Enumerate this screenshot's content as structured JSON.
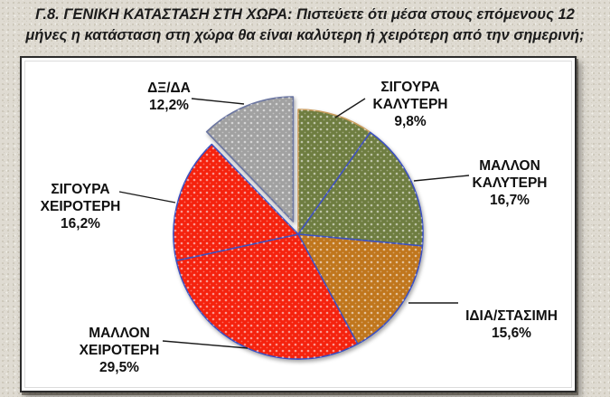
{
  "page": {
    "background_color": "#dfdbd2",
    "title": "Γ.8. ΓΕΝΙΚΗ ΚΑΤΑΣΤΑΣΗ ΣΤΗ ΧΩΡΑ: Πιστεύετε ότι μέσα στους επόμενους 12 μήνες η κατάσταση στη χώρα θα είναι καλύτερη ή χειρότερη από την σημερινή;"
  },
  "chart_data": {
    "type": "pie",
    "title": "Γ.8. ΓΕΝΙΚΗ ΚΑΤΑΣΤΑΣΗ ΣΤΗ ΧΩΡΑ: Πιστεύετε ότι μέσα στους επόμενους 12 μήνες η κατάσταση στη χώρα θα είναι καλύτερη ή χειρότερη από την σημερινή;",
    "direction": "clockwise",
    "start_angle_deg": 0,
    "labels_outside": true,
    "value_unit": "%",
    "value_format": "comma_decimal",
    "slices": [
      {
        "label": "ΣΙΓΟΥΡΑ ΚΑΛΥΤΕΡΗ",
        "value": 9.8,
        "pct_label": "9,8%",
        "color": "#6e7d3f",
        "border_color": "#c89a5a",
        "exploded": false
      },
      {
        "label": "ΜΑΛΛΟΝ ΚΑΛΥΤΕΡΗ",
        "value": 16.7,
        "pct_label": "16,7%",
        "color": "#6e7d3f",
        "border_color": "#3a50c0",
        "exploded": false
      },
      {
        "label": "ΙΔΙΑ/ΣΤΑΣΙΜΗ",
        "value": 15.6,
        "pct_label": "15,6%",
        "color": "#c0761e",
        "border_color": "#3a50c0",
        "exploded": false
      },
      {
        "label": "ΜΑΛΛΟΝ ΧΕΙΡΟΤΕΡΗ",
        "value": 29.5,
        "pct_label": "29,5%",
        "color": "#f5200e",
        "border_color": "#3a50c0",
        "exploded": false
      },
      {
        "label": "ΣΙΓΟΥΡΑ ΧΕΙΡΟΤΕΡΗ",
        "value": 16.2,
        "pct_label": "16,2%",
        "color": "#f5200e",
        "border_color": "#3a50c0",
        "exploded": false
      },
      {
        "label": "ΔΞ/ΔΑ",
        "value": 12.2,
        "pct_label": "12,2%",
        "color": "#a1a1a1",
        "border_color": "#6a74a0",
        "exploded": true
      }
    ]
  }
}
